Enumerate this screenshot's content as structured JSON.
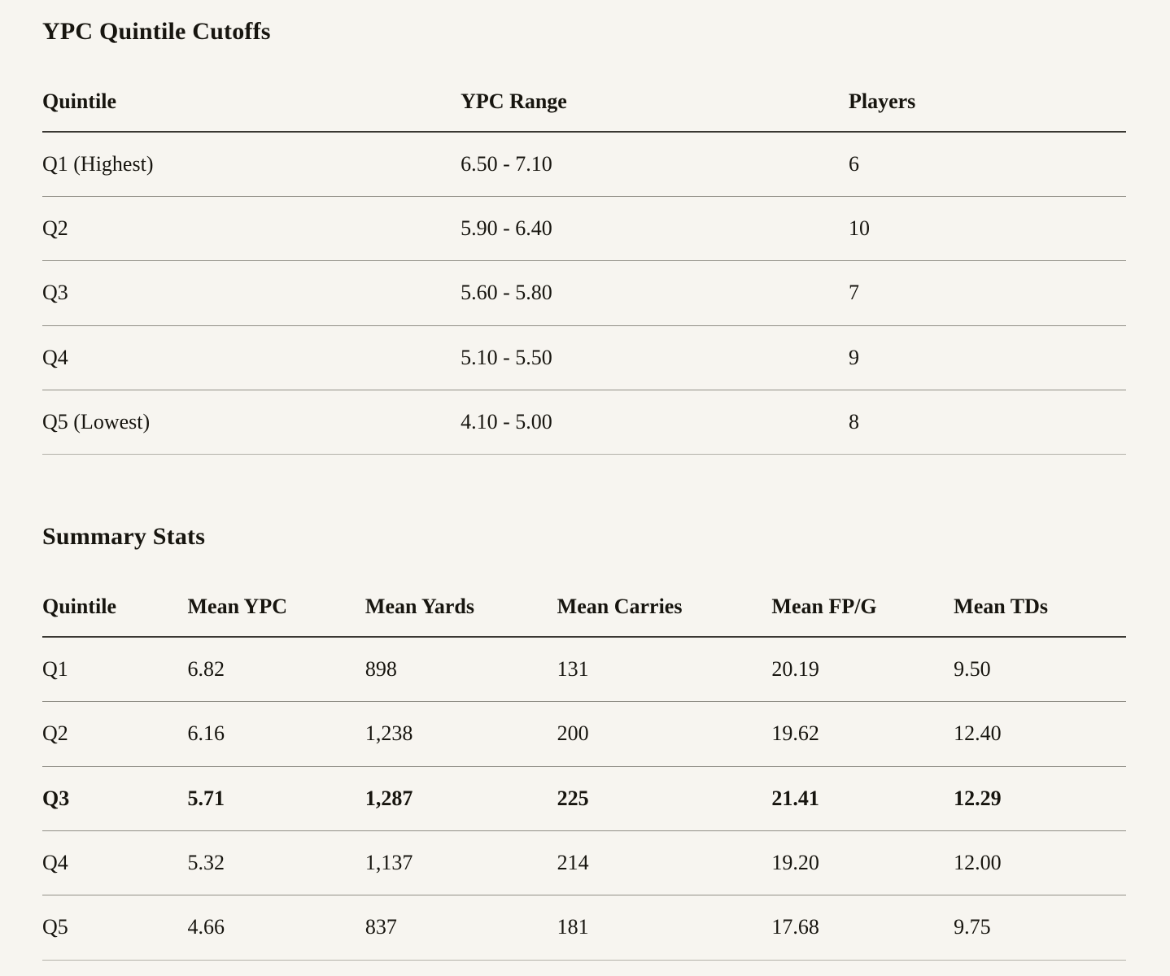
{
  "page": {
    "background_color": "#f7f5f0",
    "text_color": "#17150f",
    "header_rule_color": "#3a3833",
    "row_rule_color": "#918f87"
  },
  "cutoffs_table": {
    "title": "YPC Quintile Cutoffs",
    "columns": [
      "Quintile",
      "YPC Range",
      "Players"
    ],
    "rows": [
      [
        "Q1 (Highest)",
        "6.50 - 7.10",
        "6"
      ],
      [
        "Q2",
        "5.90 - 6.40",
        "10"
      ],
      [
        "Q3",
        "5.60 - 5.80",
        "7"
      ],
      [
        "Q4",
        "5.10 - 5.50",
        "9"
      ],
      [
        "Q5 (Lowest)",
        "4.10 - 5.00",
        "8"
      ]
    ]
  },
  "summary_table": {
    "title": "Summary Stats",
    "columns": [
      "Quintile",
      "Mean YPC",
      "Mean Yards",
      "Mean Carries",
      "Mean FP/G",
      "Mean TDs"
    ],
    "rows": [
      [
        "Q1",
        "6.82",
        "898",
        "131",
        "20.19",
        "9.50"
      ],
      [
        "Q2",
        "6.16",
        "1,238",
        "200",
        "19.62",
        "12.40"
      ],
      [
        "Q3",
        "5.71",
        "1,287",
        "225",
        "21.41",
        "12.29"
      ],
      [
        "Q4",
        "5.32",
        "1,137",
        "214",
        "19.20",
        "12.00"
      ],
      [
        "Q5",
        "4.66",
        "837",
        "181",
        "17.68",
        "9.75"
      ]
    ],
    "highlighted_row": "Q3"
  }
}
